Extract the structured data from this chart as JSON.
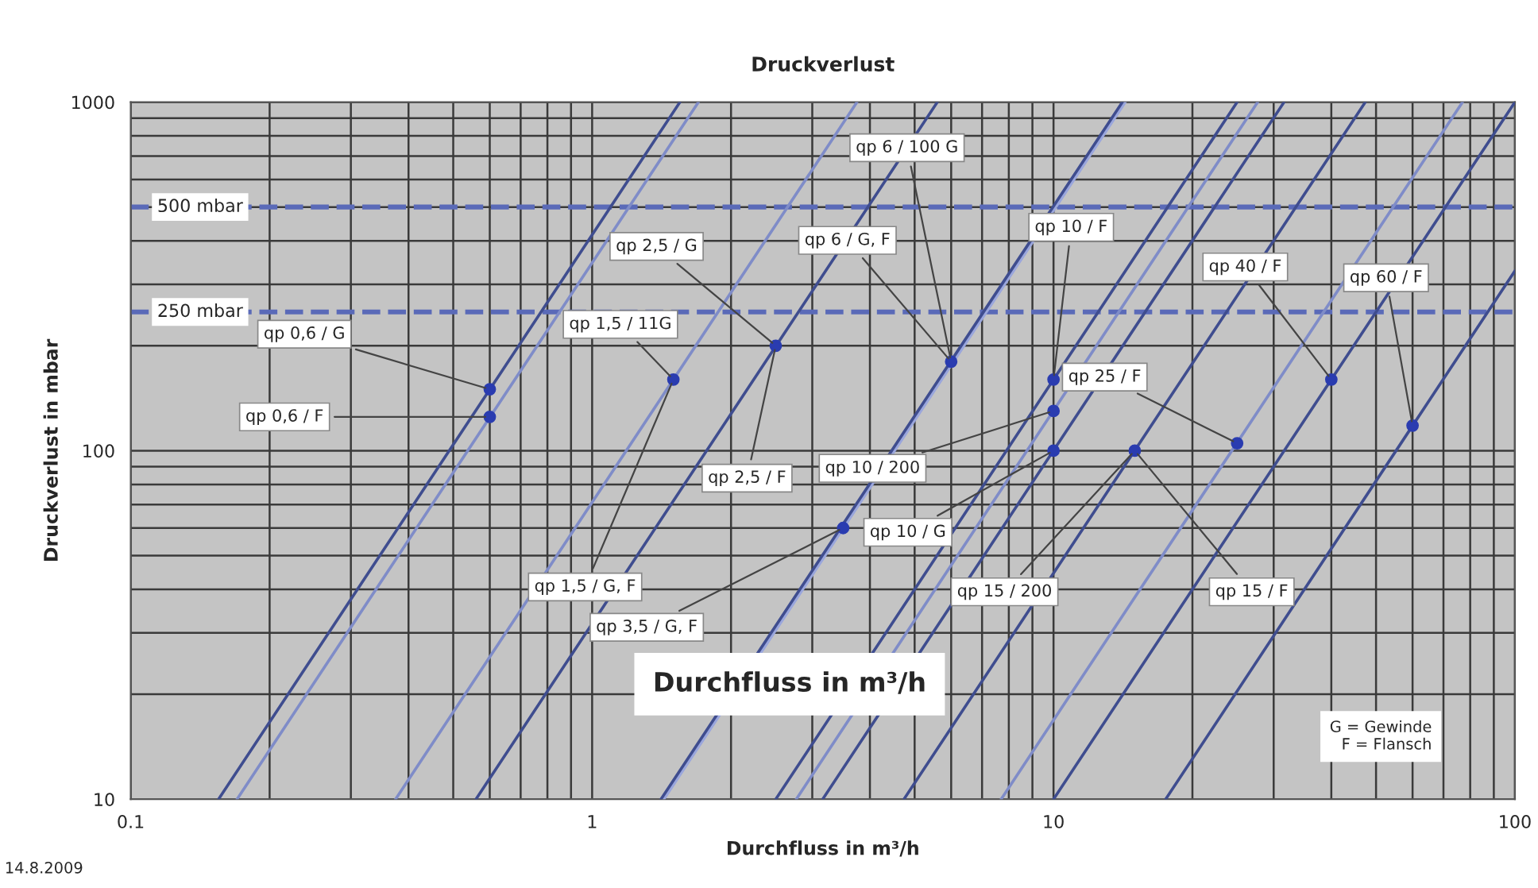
{
  "chart_data": {
    "type": "line",
    "title": "Druckverlust",
    "xlabel": "Durchfluss in m³/h",
    "ylabel": "Druckverlust in mbar",
    "log": "xy",
    "xlim": [
      0.1,
      100
    ],
    "ylim": [
      10,
      1000
    ],
    "xticks": [
      0.1,
      1,
      10,
      100
    ],
    "yticks": [
      10,
      100,
      1000
    ],
    "grid": true,
    "legend": false,
    "line_style": "solid",
    "marker": "none",
    "series": [
      {
        "color": "#3f4d8f",
        "x": [
          0.155,
          1.55
        ],
        "values": [
          10,
          1000
        ]
      },
      {
        "color": "#7f8cc8",
        "x": [
          0.17,
          1.7
        ],
        "values": [
          10,
          1000
        ]
      },
      {
        "color": "#7f8cc8",
        "x": [
          0.375,
          3.75
        ],
        "values": [
          10,
          1000
        ]
      },
      {
        "color": "#3f4d8f",
        "x": [
          0.56,
          5.6
        ],
        "values": [
          10,
          1000
        ]
      },
      {
        "color": "#9aa6dc",
        "x": [
          1.43,
          14.3
        ],
        "values": [
          10,
          1000
        ]
      },
      {
        "color": "#3f4d8f",
        "x": [
          1.41,
          14.1
        ],
        "values": [
          10,
          1000
        ]
      },
      {
        "color": "#3f4d8f",
        "x": [
          2.5,
          25
        ],
        "values": [
          10,
          1000
        ]
      },
      {
        "color": "#7f8cc8",
        "x": [
          2.77,
          27.7
        ],
        "values": [
          10,
          1000
        ]
      },
      {
        "color": "#3f4d8f",
        "x": [
          3.16,
          31.6
        ],
        "values": [
          10,
          1000
        ]
      },
      {
        "color": "#3f4d8f",
        "x": [
          4.74,
          47.4
        ],
        "values": [
          10,
          1000
        ]
      },
      {
        "color": "#7f8cc8",
        "x": [
          7.7,
          77
        ],
        "values": [
          10,
          1000
        ]
      },
      {
        "color": "#3f4d8f",
        "x": [
          10,
          100
        ],
        "values": [
          10,
          1000
        ]
      },
      {
        "color": "#3f4d8f",
        "x": [
          17.5,
          100
        ],
        "values": [
          10,
          328
        ]
      },
      {
        "type": "scatter",
        "marker": "circle",
        "color": "#2a3cb0",
        "x": [
          0.6,
          0.6,
          1.5,
          2.5,
          3.5,
          6,
          10,
          10,
          10,
          15,
          25,
          40,
          60
        ],
        "values": [
          150,
          125,
          160,
          200,
          60,
          180,
          160,
          130,
          100,
          100,
          105,
          160,
          118
        ]
      }
    ],
    "ref_lines": [
      {
        "axis": "y",
        "value": 500,
        "label": "500 mbar",
        "color": "#5a6ab8",
        "line_style": "dashed"
      },
      {
        "axis": "y",
        "value": 250,
        "label": "250 mbar",
        "color": "#5a6ab8",
        "line_style": "dashed"
      }
    ],
    "annotations": [
      {
        "text": "qp 0,6 / G",
        "x": 0.6,
        "y": 150
      },
      {
        "text": "qp 0,6 / F",
        "x": 0.6,
        "y": 125
      },
      {
        "text": "qp 1,5 / 11G",
        "x": 1.5,
        "y": 160
      },
      {
        "text": "qp 1,5 / G, F",
        "x": 1.5,
        "y": 160
      },
      {
        "text": "qp 2,5 / G",
        "x": 2.5,
        "y": 200
      },
      {
        "text": "qp 2,5 / F",
        "x": 2.5,
        "y": 200
      },
      {
        "text": "qp 3,5 / G, F",
        "x": 3.5,
        "y": 60
      },
      {
        "text": "qp 6 / G, F",
        "x": 6,
        "y": 180
      },
      {
        "text": "qp 6 / 100 G",
        "x": 6,
        "y": 180
      },
      {
        "text": "qp 10 / F",
        "x": 10,
        "y": 160
      },
      {
        "text": "qp 10 / 200",
        "x": 10,
        "y": 130
      },
      {
        "text": "qp 10 / G",
        "x": 10,
        "y": 100
      },
      {
        "text": "qp 15 / 200",
        "x": 15,
        "y": 100
      },
      {
        "text": "qp 15 / F",
        "x": 15,
        "y": 100
      },
      {
        "text": "qp 25 / F",
        "x": 25,
        "y": 105
      },
      {
        "text": "qp 40 / F",
        "x": 40,
        "y": 160
      },
      {
        "text": "qp 60 / F",
        "x": 60,
        "y": 118
      },
      "Durchfluss in m³/h",
      "G = Gewinde\nF = Flansch",
      "14.8.2009"
    ]
  }
}
